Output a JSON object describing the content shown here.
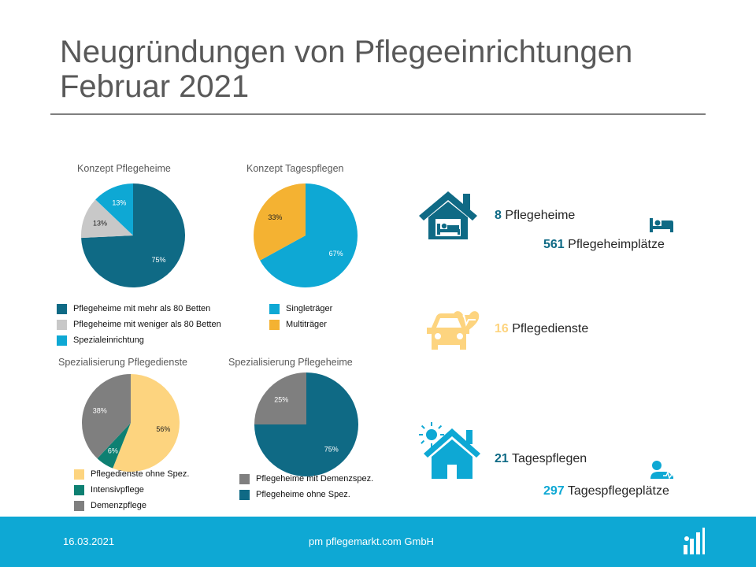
{
  "title": {
    "line1": "Neugründungen von Pflegeeinrichtungen",
    "line2": "Februar 2021"
  },
  "colors": {
    "dark_teal": "#0f6a85",
    "light_gray": "#c8c8c8",
    "cyan": "#0ea8d4",
    "orange": "#f4b232",
    "sand": "#fdd47f",
    "green": "#0e8072",
    "gray": "#7f7f7f",
    "footer": "#0ea8d4"
  },
  "chart_data": [
    {
      "type": "pie",
      "title": "Konzept Pflegeheime",
      "slices": [
        {
          "label": "Pflegeheime mit mehr als 80 Betten",
          "value": 75,
          "value_label": "75%",
          "color": "#0f6a85"
        },
        {
          "label": "Pflegeheime mit weniger als 80 Betten",
          "value": 13,
          "value_label": "13%",
          "color": "#c8c8c8"
        },
        {
          "label": "Spezialeinrichtung",
          "value": 13,
          "value_label": "13%",
          "color": "#0ea8d4"
        }
      ]
    },
    {
      "type": "pie",
      "title": "Konzept Tagespflegen",
      "slices": [
        {
          "label": "Singleträger",
          "value": 67,
          "value_label": "67%",
          "color": "#0ea8d4"
        },
        {
          "label": "Multiträger",
          "value": 33,
          "value_label": "33%",
          "color": "#f4b232"
        }
      ]
    },
    {
      "type": "pie",
      "title": "Spezialisierung Pflegedienste",
      "slices": [
        {
          "label": "Pflegedienste ohne Spez.",
          "value": 56,
          "value_label": "56%",
          "color": "#fdd47f"
        },
        {
          "label": "Intensivpflege",
          "value": 6,
          "value_label": "6%",
          "color": "#0e8072"
        },
        {
          "label": "Demenzpflege",
          "value": 38,
          "value_label": "38%",
          "color": "#7f7f7f"
        }
      ]
    },
    {
      "type": "pie",
      "title": "Spezialisierung Pflegeheime",
      "slices": [
        {
          "label": "Pflegeheime ohne Spez.",
          "value": 75,
          "value_label": "75%",
          "color": "#0f6a85"
        },
        {
          "label": "Pflegeheime mit Demenzspez.",
          "value": 25,
          "value_label": "25%",
          "color": "#7f7f7f"
        }
      ],
      "legend_order": [
        "Pflegeheime mit Demenzspez.",
        "Pflegeheime ohne Spez."
      ]
    }
  ],
  "stats": {
    "pflegeheime": {
      "num": "8",
      "label": "Pflegeheime",
      "num_color": "#0f6a85"
    },
    "pflegeheimplaetze": {
      "num": "561",
      "label": "Pflegeheimplätze",
      "num_color": "#0f6a85"
    },
    "pflegedienste": {
      "num": "16",
      "label": "Pflegedienste",
      "num_color": "#fdd47f"
    },
    "tagespflegen": {
      "num": "21",
      "label": "Tagespflegen",
      "num_color": "#0f6a85"
    },
    "tagespflegeplaetze": {
      "num": "297",
      "label": "Tagespflegeplätze",
      "num_color": "#0ea8d4"
    }
  },
  "icons": [
    "house-bed-icon",
    "bed-icon",
    "car-heart-icon",
    "sun-house-icon",
    "person-lying-icon",
    "logo-icon"
  ],
  "footer": {
    "date": "16.03.2021",
    "company": "pm pflegemarkt.com GmbH"
  }
}
